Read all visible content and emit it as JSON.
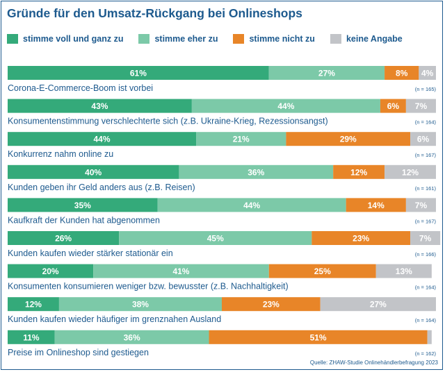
{
  "chart_data": {
    "type": "bar",
    "orientation": "horizontal",
    "stacked": true,
    "title": "Gründe für den Umsatz-Rückgang bei Onlineshops",
    "xlabel": "",
    "ylabel": "",
    "xlim": [
      0,
      100
    ],
    "grid": false,
    "legend_position": "top",
    "series": [
      {
        "name": "stimme voll und ganz zu",
        "color": "#34aa7a"
      },
      {
        "name": "stimme eher zu",
        "color": "#7cc9a8"
      },
      {
        "name": "stimme nicht zu",
        "color": "#e88528"
      },
      {
        "name": "keine Angabe",
        "color": "#c2c4c8"
      }
    ],
    "categories": [
      {
        "label": "Corona-E-Commerce-Boom ist vorbei",
        "n": "(n = 165)",
        "values": [
          61,
          27,
          8,
          4
        ]
      },
      {
        "label": "Konsumentenstimmung verschlechterte sich (z.B. Ukraine-Krieg, Rezessionsangst)",
        "n": "(n = 164)",
        "values": [
          43,
          44,
          6,
          7
        ]
      },
      {
        "label": "Konkurrenz nahm online zu",
        "n": "(n = 167)",
        "values": [
          44,
          21,
          29,
          6
        ]
      },
      {
        "label": "Kunden geben ihr Geld anders aus (z.B. Reisen)",
        "n": "(n = 161)",
        "values": [
          40,
          36,
          12,
          12
        ]
      },
      {
        "label": "Kaufkraft der Kunden hat abgenommen",
        "n": "(n = 167)",
        "values": [
          35,
          44,
          14,
          7
        ]
      },
      {
        "label": "Kunden kaufen wieder stärker stationär ein",
        "n": "(n = 166)",
        "values": [
          26,
          45,
          23,
          7
        ]
      },
      {
        "label": "Konsumenten konsumieren weniger bzw. bewusster (z.B. Nachhaltigkeit)",
        "n": "(n = 164)",
        "values": [
          20,
          41,
          25,
          13
        ]
      },
      {
        "label": "Kunden kaufen wieder häufiger im grenznahen Ausland",
        "n": "(n = 164)",
        "values": [
          12,
          38,
          23,
          27
        ]
      },
      {
        "label": "Preise im Onlineshop sind gestiegen",
        "n": "(n = 162)",
        "values": [
          11,
          36,
          51,
          1
        ]
      }
    ],
    "value_suffix": "%"
  },
  "source": "Quelle: ZHAW-Studie Onlinehändlerbefragung 2023"
}
